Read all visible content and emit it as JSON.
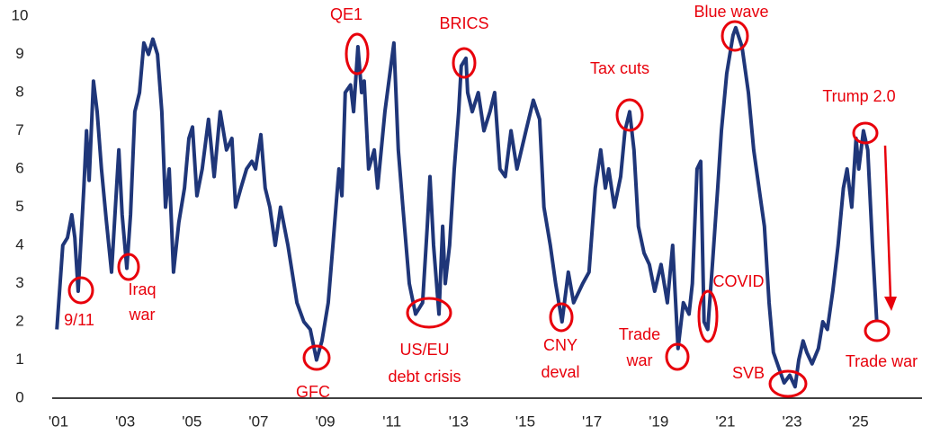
{
  "chart_data": {
    "type": "line",
    "x": [
      2000.95,
      2001.13,
      2001.27,
      2001.4,
      2001.49,
      2001.59,
      2001.76,
      2001.84,
      2001.92,
      2002.05,
      2002.16,
      2002.29,
      2002.43,
      2002.59,
      2002.81,
      2002.91,
      2003.05,
      2003.16,
      2003.29,
      2003.43,
      2003.56,
      2003.7,
      2003.83,
      2003.97,
      2004.1,
      2004.21,
      2004.32,
      2004.45,
      2004.61,
      2004.78,
      2004.91,
      2005.02,
      2005.15,
      2005.31,
      2005.5,
      2005.67,
      2005.85,
      2006.04,
      2006.2,
      2006.31,
      2006.47,
      2006.64,
      2006.8,
      2006.91,
      2007.07,
      2007.2,
      2007.34,
      2007.5,
      2007.66,
      2007.88,
      2008.15,
      2008.36,
      2008.55,
      2008.74,
      2008.9,
      2009.09,
      2009.23,
      2009.41,
      2009.5,
      2009.6,
      2009.76,
      2009.85,
      2009.98,
      2010.09,
      2010.17,
      2010.3,
      2010.47,
      2010.57,
      2010.79,
      2011.06,
      2011.19,
      2011.33,
      2011.52,
      2011.71,
      2011.92,
      2012.06,
      2012.14,
      2012.25,
      2012.41,
      2012.52,
      2012.6,
      2012.73,
      2012.87,
      2013.0,
      2013.08,
      2013.22,
      2013.27,
      2013.41,
      2013.59,
      2013.76,
      2013.94,
      2014.08,
      2014.24,
      2014.4,
      2014.57,
      2014.75,
      2015.02,
      2015.24,
      2015.43,
      2015.56,
      2015.75,
      2015.91,
      2016.1,
      2016.29,
      2016.45,
      2016.72,
      2016.91,
      2017.1,
      2017.26,
      2017.4,
      2017.5,
      2017.67,
      2017.86,
      2017.99,
      2018.13,
      2018.26,
      2018.39,
      2018.56,
      2018.72,
      2018.88,
      2019.07,
      2019.26,
      2019.42,
      2019.58,
      2019.74,
      2019.91,
      2020.01,
      2020.15,
      2020.26,
      2020.36,
      2020.47,
      2020.61,
      2020.77,
      2020.88,
      2021.04,
      2021.23,
      2021.31,
      2021.5,
      2021.69,
      2021.85,
      2022.04,
      2022.17,
      2022.31,
      2022.44,
      2022.6,
      2022.76,
      2022.93,
      2023.09,
      2023.2,
      2023.33,
      2023.44,
      2023.6,
      2023.79,
      2023.92,
      2024.06,
      2024.22,
      2024.38,
      2024.54,
      2024.65,
      2024.79,
      2024.92,
      2025.0,
      2025.14,
      2025.27,
      2025.41,
      2025.54
    ],
    "values": [
      1.8,
      4.0,
      4.2,
      4.8,
      4.2,
      2.8,
      5.5,
      7.0,
      5.7,
      8.3,
      7.5,
      6.0,
      4.7,
      3.3,
      6.5,
      4.8,
      3.4,
      4.8,
      7.5,
      8.0,
      9.3,
      9.0,
      9.4,
      9.0,
      7.5,
      5.0,
      6.0,
      3.3,
      4.6,
      5.5,
      6.8,
      7.1,
      5.3,
      6.0,
      7.3,
      5.8,
      7.5,
      6.5,
      6.8,
      5.0,
      5.5,
      6.0,
      6.2,
      6.0,
      6.9,
      5.5,
      5.0,
      4.0,
      5.0,
      4.0,
      2.5,
      2.0,
      1.8,
      1.0,
      1.5,
      2.5,
      4.0,
      6.0,
      5.3,
      8.0,
      8.2,
      7.5,
      9.2,
      8.0,
      8.3,
      6.0,
      6.5,
      5.5,
      7.5,
      9.3,
      6.5,
      5.0,
      3.0,
      2.2,
      2.5,
      4.5,
      5.8,
      4.0,
      2.2,
      4.5,
      3.0,
      4.0,
      6.0,
      7.5,
      8.7,
      8.9,
      8.0,
      7.5,
      8.0,
      7.0,
      7.5,
      8.0,
      6.0,
      5.8,
      7.0,
      6.0,
      7.0,
      7.8,
      7.3,
      5.0,
      4.0,
      3.0,
      2.0,
      3.3,
      2.5,
      3.0,
      3.3,
      5.5,
      6.5,
      5.5,
      6.0,
      5.0,
      5.8,
      7.0,
      7.5,
      6.5,
      4.5,
      3.8,
      3.5,
      2.8,
      3.5,
      2.5,
      4.0,
      1.3,
      2.5,
      2.2,
      3.0,
      6.0,
      6.2,
      2.0,
      1.8,
      3.5,
      5.5,
      7.0,
      8.5,
      9.5,
      9.7,
      9.2,
      8.0,
      6.5,
      5.3,
      4.5,
      2.5,
      1.2,
      0.8,
      0.4,
      0.6,
      0.3,
      1.0,
      1.5,
      1.2,
      0.9,
      1.3,
      2.0,
      1.8,
      2.8,
      4.0,
      5.5,
      6.0,
      5.0,
      6.8,
      6.0,
      7.0,
      6.5,
      4.0,
      2.0
    ],
    "color": "#1f3679",
    "xlim": [
      2000.8,
      2026.6
    ],
    "xticks": [
      {
        "value": 2001,
        "label": "'01"
      },
      {
        "value": 2003,
        "label": "'03"
      },
      {
        "value": 2005,
        "label": "'05"
      },
      {
        "value": 2007,
        "label": "'07"
      },
      {
        "value": 2009,
        "label": "'09"
      },
      {
        "value": 2011,
        "label": "'11"
      },
      {
        "value": 2013,
        "label": "'13"
      },
      {
        "value": 2015,
        "label": "'15"
      },
      {
        "value": 2017,
        "label": "'17"
      },
      {
        "value": 2019,
        "label": "'19"
      },
      {
        "value": 2021,
        "label": "'21"
      },
      {
        "value": 2023,
        "label": "'23"
      },
      {
        "value": 2025,
        "label": "'25"
      }
    ],
    "ylim": [
      0,
      10
    ],
    "yticks": [
      0,
      1,
      2,
      3,
      4,
      5,
      6,
      7,
      8,
      9,
      10
    ],
    "grid": false,
    "annotation_color": "#e8000b",
    "annotations": [
      [
        "9/11"
      ],
      [
        "Iraq",
        "war"
      ],
      [
        "GFC"
      ],
      [
        "QE1"
      ],
      [
        "US/EU",
        "debt crisis"
      ],
      [
        "BRICS"
      ],
      [
        "CNY",
        "deval"
      ],
      [
        "Tax cuts"
      ],
      [
        "Trade",
        "war"
      ],
      [
        "COVID"
      ],
      [
        "Blue wave"
      ],
      [
        "SVB"
      ],
      [
        "Trump 2.0"
      ],
      [
        "Trade war"
      ]
    ]
  }
}
